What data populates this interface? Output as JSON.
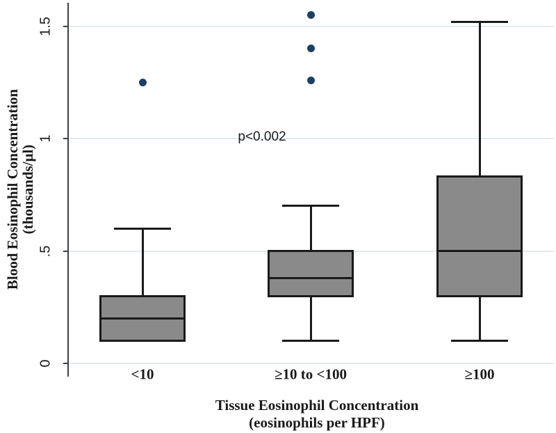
{
  "chart_data": {
    "type": "box",
    "title": "",
    "xlabel_line1": "Tissue Eosinophil Concentration",
    "xlabel_line2": "(eosinophils per HPF)",
    "ylabel_line1": "Blood Eosinophil Concentration",
    "ylabel_line2": "(thousands/μl)",
    "ylim": [
      0,
      1.6
    ],
    "grid": true,
    "legend": "none",
    "yticks": [
      {
        "value": 0,
        "label": "0"
      },
      {
        "value": 0.5,
        "label": ".5"
      },
      {
        "value": 1,
        "label": "1"
      },
      {
        "value": 1.5,
        "label": "1.5"
      }
    ],
    "categories": [
      "<10",
      "≥10 to <100",
      "≥100"
    ],
    "series": [
      {
        "category": "<10",
        "whisker_low": 0.1,
        "q1": 0.1,
        "median": 0.2,
        "q3": 0.3,
        "whisker_high": 0.6,
        "outliers": [
          1.25
        ]
      },
      {
        "category": "≥10 to <100",
        "whisker_low": 0.1,
        "q1": 0.3,
        "median": 0.38,
        "q3": 0.5,
        "whisker_high": 0.7,
        "outliers": [
          1.26,
          1.4,
          1.55
        ]
      },
      {
        "category": "≥100",
        "whisker_low": 0.1,
        "q1": 0.3,
        "median": 0.5,
        "q3": 0.83,
        "whisker_high": 1.52,
        "outliers": []
      }
    ],
    "annotation": {
      "text": "p<0.002"
    },
    "colors": {
      "box_fill": "#8a8a8a",
      "box_border": "#1a1a1a",
      "outlier": "#1d4063",
      "gridline": "#e2eaf1",
      "axis": "#3f3f3f",
      "text": "#1a1a1a"
    }
  }
}
